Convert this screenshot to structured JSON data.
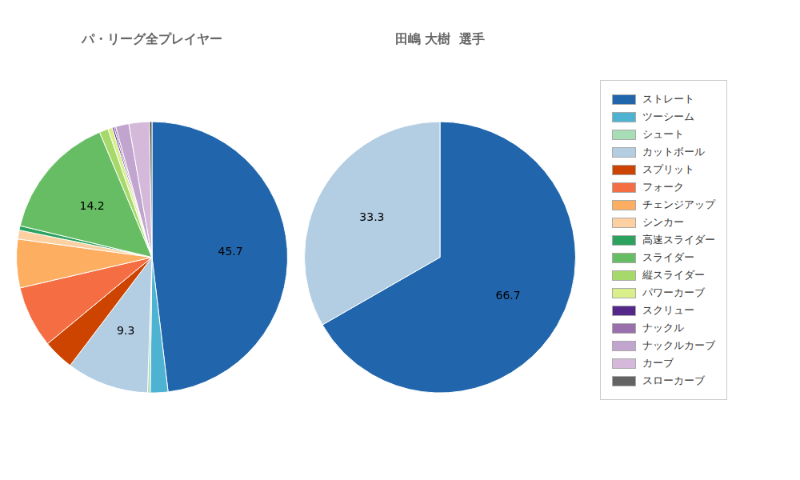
{
  "chart_data": [
    {
      "type": "pie",
      "title": "パ・リーグ全プレイヤー",
      "categories": [
        "ストレート",
        "ツーシーム",
        "シュート",
        "カットボール",
        "スプリット",
        "フォーク",
        "チェンジアップ",
        "シンカー",
        "高速スライダー",
        "スライダー",
        "縦スライダー",
        "パワーカーブ",
        "スクリュー",
        "ナックル",
        "ナックルカーブ",
        "カーブ",
        "スローカーブ"
      ],
      "values": [
        45.7,
        2.0,
        0.3,
        9.3,
        3.5,
        7.0,
        5.5,
        1.0,
        0.5,
        14.2,
        1.0,
        0.5,
        0.2,
        0.2,
        1.5,
        2.3,
        0.3
      ],
      "colors": [
        "#2166ac",
        "#4eb3d3",
        "#a8ddb5",
        "#b3cde3",
        "#cc4400",
        "#f46d43",
        "#fdae61",
        "#fdd0a2",
        "#2ca25f",
        "#66bd63",
        "#a6d96a",
        "#d9ef8b",
        "#542788",
        "#9970ab",
        "#c2a5cf",
        "#d4b9da",
        "#636363"
      ],
      "data_labels": true,
      "value_labels": [
        "45.7",
        null,
        null,
        "9.3",
        null,
        null,
        null,
        null,
        null,
        "14.2",
        null,
        null,
        null,
        null,
        null,
        null,
        null
      ],
      "legend": "right"
    },
    {
      "type": "pie",
      "title": "田嶋 大樹  選手",
      "categories": [
        "ストレート",
        "カットボール"
      ],
      "values": [
        66.7,
        33.3
      ],
      "colors": [
        "#2166ac",
        "#b3cde3"
      ],
      "data_labels": true
    }
  ]
}
